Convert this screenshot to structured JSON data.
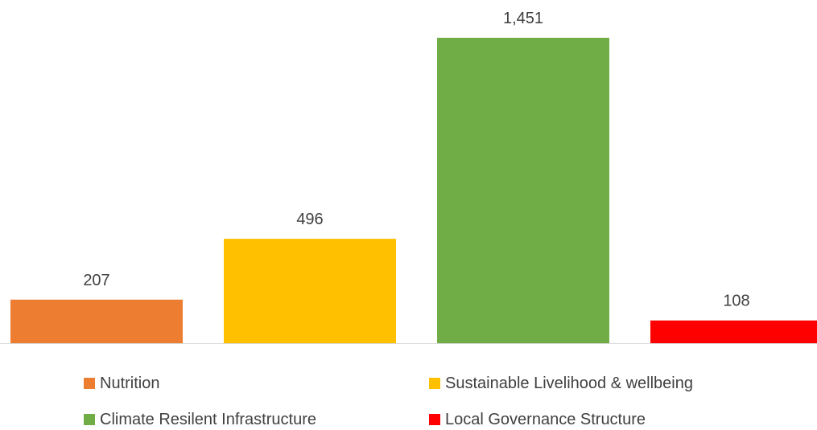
{
  "chart_data": {
    "type": "bar",
    "title": "",
    "xlabel": "",
    "ylabel": "",
    "ylim": [
      0,
      1451
    ],
    "grid": false,
    "legend_placement": "bottom",
    "categories": [
      "Nutrition",
      "Sustainable Livelihood & wellbeing",
      "Climate Resilent Infrastructure",
      "Local Governance Structure"
    ],
    "values": [
      207,
      496,
      1451,
      108
    ],
    "data_labels": [
      "207",
      "496",
      "1,451",
      "108"
    ],
    "colors": [
      "#ED7D31",
      "#FFC000",
      "#70AD47",
      "#FF0000"
    ]
  }
}
